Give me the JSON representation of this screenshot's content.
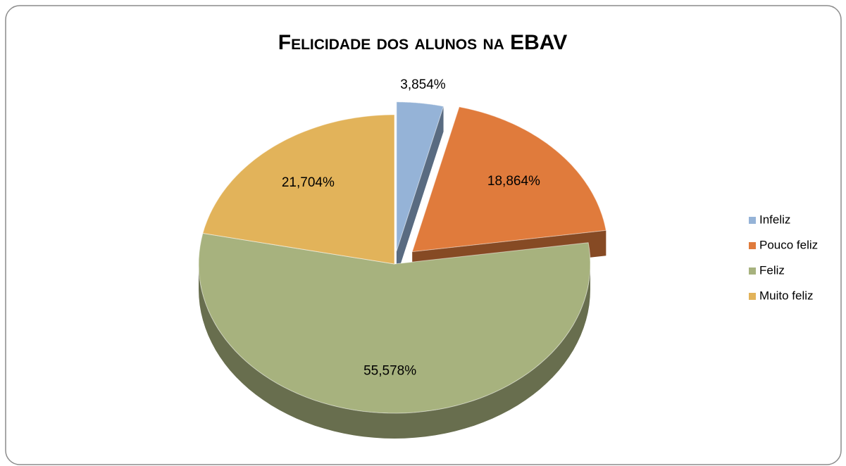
{
  "chart_data": {
    "type": "pie",
    "title": "Felicidade dos alunos na EBAV",
    "categories": [
      "Infeliz",
      "Pouco feliz",
      "Feliz",
      "Muito feliz"
    ],
    "values": [
      3.854,
      18.864,
      55.578,
      21.704
    ],
    "value_labels": [
      "3,854%",
      "18,864%",
      "55,578%",
      "21,704%"
    ],
    "colors": [
      "#95b3d7",
      "#e07b3c",
      "#a7b27e",
      "#e2b35a"
    ],
    "legend": "right"
  }
}
